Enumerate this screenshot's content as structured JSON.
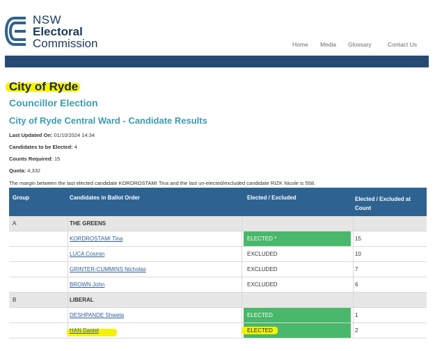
{
  "logo": {
    "line1": "NSW",
    "line2": "Electoral",
    "line3": "Commission"
  },
  "nav": {
    "home": "Home",
    "media": "Media",
    "glossary": "Glossary",
    "contact": "Contact Us"
  },
  "page": {
    "title": "City of Ryde",
    "subtitle": "Councillor Election",
    "ward_title": "City of Ryde Central Ward - Candidate Results"
  },
  "meta": {
    "updated_label": "Last Updated On:",
    "updated_value": "01/10/2024 14:34",
    "to_elect_label": "Candidates to be Elected:",
    "to_elect_value": "4",
    "counts_label": "Counts Required:",
    "counts_value": "15",
    "quota_label": "Quota:",
    "quota_value": "4,332",
    "margin_note": "The margin between the last elected candidate KORDROSTAMI Tina and the last un-elected/excluded candidate RIZK Nicole is 558."
  },
  "table": {
    "headers": {
      "group": "Group",
      "candidates": "Candidates in Ballot Order",
      "status": "Elected / Excluded",
      "count_l1": "Elected / Excluded at",
      "count_l2": "Count"
    },
    "rows": [
      {
        "type": "group",
        "group": "A",
        "name": "THE GREENS"
      },
      {
        "type": "cand",
        "name": "KORDROSTAMI Tina",
        "status": "ELECTED *",
        "elected": true,
        "count": "15"
      },
      {
        "type": "cand",
        "name": "LUCA Cosmin",
        "status": "EXCLUDED",
        "elected": false,
        "count": "10"
      },
      {
        "type": "cand",
        "name": "GRINTER-CUMMINS Nicholas",
        "status": "EXCLUDED",
        "elected": false,
        "count": "7"
      },
      {
        "type": "cand",
        "name": "BROWN John",
        "status": "EXCLUDED",
        "elected": false,
        "count": "6"
      },
      {
        "type": "group",
        "group": "B",
        "name": "LIBERAL"
      },
      {
        "type": "cand",
        "name": "DESHPANDE Shweta",
        "status": "ELECTED",
        "elected": true,
        "count": "1"
      },
      {
        "type": "cand",
        "name": "HAN Daniel",
        "status": "ELECTED",
        "elected": true,
        "count": "2"
      }
    ]
  },
  "colors": {
    "brand_navy": "#274a72",
    "header_blue": "#2e6391",
    "teal": "#3b9bb0",
    "elected_green": "#49b86a",
    "highlight": "#f5f10a"
  }
}
